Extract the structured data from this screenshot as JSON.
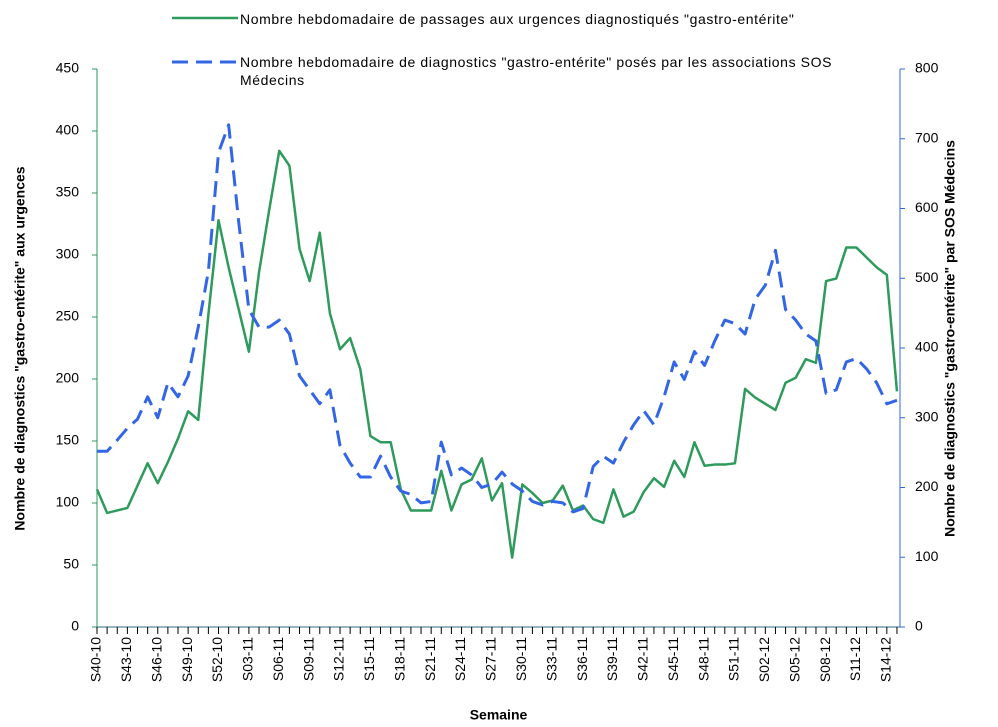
{
  "chart_data": {
    "type": "line",
    "x_label": "Semaine",
    "y_label": "Nombre de diagnostics \"gastro-entérite\" aux urgences",
    "y2_label": "Nombre de diagnostics \"gastro-entérite\" par SOS Médecins",
    "categories": [
      "S40-10",
      null,
      null,
      "S43-10",
      null,
      null,
      "S46-10",
      null,
      null,
      "S49-10",
      null,
      null,
      "S52-10",
      null,
      null,
      "S03-11",
      null,
      null,
      "S06-11",
      null,
      null,
      "S09-11",
      null,
      null,
      "S12-11",
      null,
      null,
      "S15-11",
      null,
      null,
      "S18-11",
      null,
      null,
      "S21-11",
      null,
      null,
      "S24-11",
      null,
      null,
      "S27-11",
      null,
      null,
      "S30-11",
      null,
      null,
      "S33-11",
      null,
      null,
      "S36-11",
      null,
      null,
      "S39-11",
      null,
      null,
      "S42-11",
      null,
      null,
      "S45-11",
      null,
      null,
      "S48-11",
      null,
      null,
      "S51-11",
      null,
      null,
      "S02-12",
      null,
      null,
      "S05-12",
      null,
      null,
      "S08-12",
      null,
      null,
      "S11-12",
      null,
      null,
      "S14-12",
      null
    ],
    "series": [
      {
        "name": "Nombre hebdomadaire de passages aux urgences diagnostiqués \"gastro-entérite\"",
        "color": "#2e9a5c",
        "axis": "y",
        "line_style": "solid",
        "values": [
          111,
          92,
          94,
          96,
          114,
          132,
          116,
          133,
          152,
          174,
          167,
          252,
          328,
          290,
          256,
          222,
          286,
          336,
          384,
          372,
          305,
          279,
          318,
          253,
          224,
          233,
          208,
          154,
          149,
          149,
          111,
          94,
          94,
          94,
          126,
          94,
          115,
          119,
          136,
          102,
          116,
          56,
          115,
          108,
          100,
          102,
          114,
          94,
          98,
          87,
          84,
          111,
          89,
          93,
          109,
          120,
          113,
          134,
          121,
          149,
          130,
          131,
          131,
          132,
          192,
          185,
          180,
          175,
          197,
          201,
          216,
          213,
          279,
          281,
          306,
          306,
          298,
          290,
          284,
          190
        ]
      },
      {
        "name": "Nombre hebdomadaire de diagnostics \"gastro-entérite\" posés par les associations SOS Médecins",
        "color": "#3366e6",
        "axis": "y2",
        "line_style": "dashed",
        "values": [
          252,
          252,
          268,
          285,
          298,
          330,
          300,
          350,
          330,
          360,
          430,
          510,
          680,
          720,
          580,
          455,
          430,
          430,
          440,
          420,
          360,
          340,
          320,
          340,
          260,
          235,
          215,
          215,
          245,
          215,
          195,
          190,
          178,
          180,
          265,
          218,
          228,
          218,
          200,
          205,
          222,
          205,
          195,
          180,
          175,
          180,
          178,
          165,
          170,
          230,
          245,
          235,
          265,
          290,
          310,
          290,
          330,
          380,
          355,
          395,
          375,
          410,
          440,
          435,
          420,
          470,
          490,
          540,
          455,
          440,
          420,
          410,
          335,
          340,
          380,
          385,
          370,
          350,
          320,
          325
        ]
      }
    ],
    "ylim": [
      0,
      450
    ],
    "yticks": [
      0,
      50,
      100,
      150,
      200,
      250,
      300,
      350,
      400,
      450
    ],
    "y2lim": [
      0,
      800
    ],
    "y2ticks": [
      0,
      100,
      200,
      300,
      400,
      500,
      600,
      700,
      800
    ],
    "grid": false
  }
}
